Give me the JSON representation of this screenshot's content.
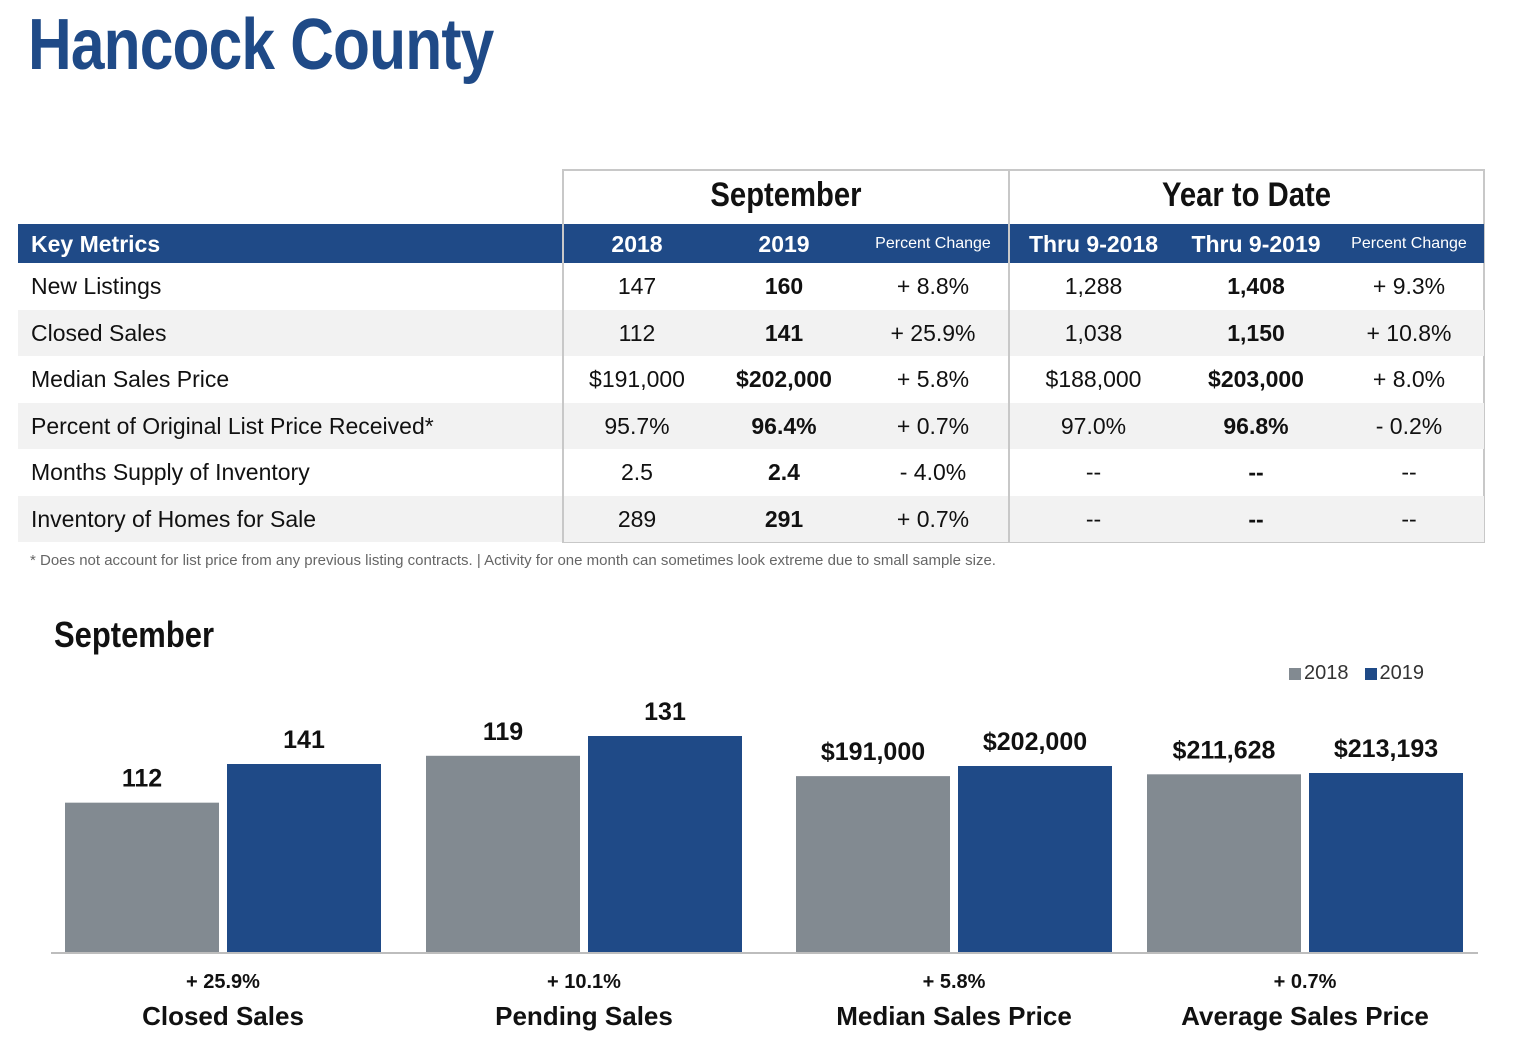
{
  "title": "Hancock County",
  "table": {
    "group_september": "September",
    "group_ytd": "Year to Date",
    "headers": [
      "Key Metrics",
      "2018",
      "2019",
      "Percent Change",
      "Thru 9-2018",
      "Thru 9-2019",
      "Percent Change"
    ],
    "rows": [
      [
        "New Listings",
        "147",
        "160",
        "+ 8.8%",
        "1,288",
        "1,408",
        "+ 9.3%"
      ],
      [
        "Closed Sales",
        "112",
        "141",
        "+ 25.9%",
        "1,038",
        "1,150",
        "+ 10.8%"
      ],
      [
        "Median Sales Price",
        "$191,000",
        "$202,000",
        "+ 5.8%",
        "$188,000",
        "$203,000",
        "+ 8.0%"
      ],
      [
        "Percent of Original List Price Received*",
        "95.7%",
        "96.4%",
        "+ 0.7%",
        "97.0%",
        "96.8%",
        "- 0.2%"
      ],
      [
        "Months Supply of Inventory",
        "2.5",
        "2.4",
        "- 4.0%",
        "--",
        "--",
        "--"
      ],
      [
        "Inventory of Homes for Sale",
        "289",
        "291",
        "+ 0.7%",
        "--",
        "--",
        "--"
      ]
    ],
    "footnote": "* Does not account for list price from any previous listing contracts.  |  Activity for one month can sometimes look extreme due to small sample size."
  },
  "colors": {
    "brand": "#1f4a87",
    "gray": "#828a91",
    "alt_row": "#f2f2f2"
  },
  "chart_data": {
    "type": "bar",
    "title": "September",
    "legend": [
      "2018",
      "2019"
    ],
    "legend_position": "top-right",
    "groups": [
      {
        "label": "Closed Sales",
        "change": "+ 25.9%",
        "values": [
          112,
          141
        ],
        "labels": [
          "112",
          "141"
        ]
      },
      {
        "label": "Pending Sales",
        "change": "+ 10.1%",
        "values": [
          119,
          131
        ],
        "labels": [
          "119",
          "131"
        ]
      },
      {
        "label": "Median Sales Price",
        "change": "+ 5.8%",
        "values": [
          191000,
          202000
        ],
        "labels": [
          "$191,000",
          "$202,000"
        ]
      },
      {
        "label": "Average Sales Price",
        "change": "+ 0.7%",
        "values": [
          211628,
          213193
        ],
        "labels": [
          "$211,628",
          "$213,193"
        ]
      }
    ]
  }
}
